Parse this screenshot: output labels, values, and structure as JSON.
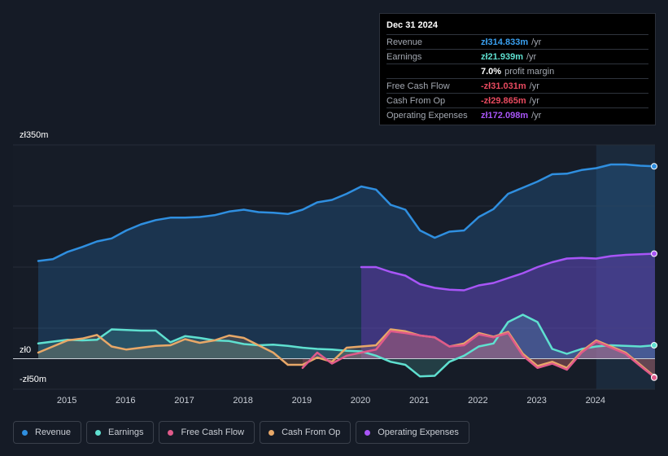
{
  "tooltip": {
    "date": "Dec 31 2024",
    "rows": {
      "revenue": {
        "label": "Revenue",
        "value": "zł314.833m",
        "unit": "/yr",
        "color": "#3aa0f0"
      },
      "earnings": {
        "label": "Earnings",
        "value": "zł21.939m",
        "unit": "/yr",
        "color": "#5fe0d0"
      },
      "margin": {
        "value": "7.0%",
        "text": "profit margin"
      },
      "fcf": {
        "label": "Free Cash Flow",
        "value": "-zł31.031m",
        "unit": "/yr",
        "color": "#e84a5f"
      },
      "cfo": {
        "label": "Cash From Op",
        "value": "-zł29.865m",
        "unit": "/yr",
        "color": "#e84a5f"
      },
      "opex": {
        "label": "Operating Expenses",
        "value": "zł172.098m",
        "unit": "/yr",
        "color": "#a855f7"
      }
    }
  },
  "axis": {
    "top": "zł350m",
    "zero": "zł0",
    "bottom": "-zł50m"
  },
  "legend": {
    "revenue": "Revenue",
    "earnings": "Earnings",
    "fcf": "Free Cash Flow",
    "cfo": "Cash From Op",
    "opex": "Operating Expenses"
  },
  "chart_data": {
    "type": "area",
    "title": "",
    "xlabel": "",
    "ylabel": "",
    "xlim": [
      2014.5,
      2025.0
    ],
    "ylim": [
      -50,
      350
    ],
    "x_ticks": [
      "2015",
      "2016",
      "2017",
      "2018",
      "2019",
      "2020",
      "2021",
      "2022",
      "2023",
      "2024"
    ],
    "y_labels": [
      "zł350m",
      "zł0",
      "-zł50m"
    ],
    "highlight_from": 2024.0,
    "series": [
      {
        "name": "Revenue",
        "color": "#2f8fe0",
        "points": [
          [
            2014.5,
            160
          ],
          [
            2014.75,
            163
          ],
          [
            2015.0,
            175
          ],
          [
            2015.25,
            183
          ],
          [
            2015.5,
            192
          ],
          [
            2015.75,
            197
          ],
          [
            2016.0,
            210
          ],
          [
            2016.25,
            220
          ],
          [
            2016.5,
            227
          ],
          [
            2016.75,
            231
          ],
          [
            2017.0,
            231
          ],
          [
            2017.25,
            232
          ],
          [
            2017.5,
            235
          ],
          [
            2017.75,
            241
          ],
          [
            2018.0,
            244
          ],
          [
            2018.25,
            240
          ],
          [
            2018.5,
            239
          ],
          [
            2018.75,
            237
          ],
          [
            2019.0,
            244
          ],
          [
            2019.25,
            256
          ],
          [
            2019.5,
            260
          ],
          [
            2019.75,
            270
          ],
          [
            2020.0,
            282
          ],
          [
            2020.25,
            277
          ],
          [
            2020.5,
            252
          ],
          [
            2020.75,
            244
          ],
          [
            2021.0,
            210
          ],
          [
            2021.25,
            198
          ],
          [
            2021.5,
            208
          ],
          [
            2021.75,
            210
          ],
          [
            2022.0,
            232
          ],
          [
            2022.25,
            245
          ],
          [
            2022.5,
            270
          ],
          [
            2022.75,
            280
          ],
          [
            2023.0,
            290
          ],
          [
            2023.25,
            302
          ],
          [
            2023.5,
            303
          ],
          [
            2023.75,
            309
          ],
          [
            2024.0,
            312
          ],
          [
            2024.25,
            318
          ],
          [
            2024.5,
            318
          ],
          [
            2024.75,
            316
          ],
          [
            2025.0,
            315
          ]
        ]
      },
      {
        "name": "Earnings",
        "color": "#5fe0d0",
        "points": [
          [
            2014.5,
            25
          ],
          [
            2014.75,
            28
          ],
          [
            2015.0,
            31
          ],
          [
            2015.25,
            30
          ],
          [
            2015.5,
            31
          ],
          [
            2015.75,
            48
          ],
          [
            2016.0,
            47
          ],
          [
            2016.25,
            46
          ],
          [
            2016.5,
            46
          ],
          [
            2016.75,
            27
          ],
          [
            2017.0,
            37
          ],
          [
            2017.25,
            34
          ],
          [
            2017.5,
            30
          ],
          [
            2017.75,
            29
          ],
          [
            2018.0,
            24
          ],
          [
            2018.25,
            22
          ],
          [
            2018.5,
            23
          ],
          [
            2018.75,
            21
          ],
          [
            2019.0,
            18
          ],
          [
            2019.25,
            16
          ],
          [
            2019.5,
            15
          ],
          [
            2019.75,
            13
          ],
          [
            2020.0,
            12
          ],
          [
            2020.25,
            5
          ],
          [
            2020.5,
            -5
          ],
          [
            2020.75,
            -10
          ],
          [
            2021.0,
            -29
          ],
          [
            2021.25,
            -28
          ],
          [
            2021.5,
            -5
          ],
          [
            2021.75,
            5
          ],
          [
            2022.0,
            20
          ],
          [
            2022.25,
            25
          ],
          [
            2022.5,
            60
          ],
          [
            2022.75,
            72
          ],
          [
            2023.0,
            60
          ],
          [
            2023.25,
            16
          ],
          [
            2023.5,
            8
          ],
          [
            2023.75,
            16
          ],
          [
            2024.0,
            20
          ],
          [
            2024.25,
            22
          ],
          [
            2024.5,
            21
          ],
          [
            2024.75,
            20
          ],
          [
            2025.0,
            22
          ]
        ]
      },
      {
        "name": "Free Cash Flow",
        "color": "#e05a8a",
        "points": [
          [
            2019.0,
            -15
          ],
          [
            2019.25,
            10
          ],
          [
            2019.5,
            -8
          ],
          [
            2019.75,
            5
          ],
          [
            2020.0,
            10
          ],
          [
            2020.25,
            15
          ],
          [
            2020.5,
            45
          ],
          [
            2020.75,
            42
          ],
          [
            2021.0,
            38
          ],
          [
            2021.25,
            35
          ],
          [
            2021.5,
            20
          ],
          [
            2021.75,
            22
          ],
          [
            2022.0,
            40
          ],
          [
            2022.25,
            35
          ],
          [
            2022.5,
            42
          ],
          [
            2022.75,
            5
          ],
          [
            2023.0,
            -15
          ],
          [
            2023.25,
            -8
          ],
          [
            2023.5,
            -18
          ],
          [
            2023.75,
            10
          ],
          [
            2024.0,
            28
          ],
          [
            2024.25,
            18
          ],
          [
            2024.5,
            8
          ],
          [
            2024.75,
            -12
          ],
          [
            2025.0,
            -31
          ]
        ]
      },
      {
        "name": "Cash From Op",
        "color": "#e8a868",
        "points": [
          [
            2014.5,
            10
          ],
          [
            2014.75,
            20
          ],
          [
            2015.0,
            30
          ],
          [
            2015.25,
            33
          ],
          [
            2015.5,
            39
          ],
          [
            2015.75,
            20
          ],
          [
            2016.0,
            15
          ],
          [
            2016.25,
            18
          ],
          [
            2016.5,
            21
          ],
          [
            2016.75,
            22
          ],
          [
            2017.0,
            32
          ],
          [
            2017.25,
            26
          ],
          [
            2017.5,
            30
          ],
          [
            2017.75,
            38
          ],
          [
            2018.0,
            34
          ],
          [
            2018.25,
            22
          ],
          [
            2018.5,
            10
          ],
          [
            2018.75,
            -10
          ],
          [
            2019.0,
            -10
          ],
          [
            2019.25,
            2
          ],
          [
            2019.5,
            -5
          ],
          [
            2019.75,
            18
          ],
          [
            2020.0,
            20
          ],
          [
            2020.25,
            22
          ],
          [
            2020.5,
            48
          ],
          [
            2020.75,
            45
          ],
          [
            2021.0,
            38
          ],
          [
            2021.25,
            35
          ],
          [
            2021.5,
            20
          ],
          [
            2021.75,
            25
          ],
          [
            2022.0,
            42
          ],
          [
            2022.25,
            36
          ],
          [
            2022.5,
            44
          ],
          [
            2022.75,
            8
          ],
          [
            2023.0,
            -12
          ],
          [
            2023.25,
            -5
          ],
          [
            2023.5,
            -15
          ],
          [
            2023.75,
            12
          ],
          [
            2024.0,
            30
          ],
          [
            2024.25,
            20
          ],
          [
            2024.5,
            10
          ],
          [
            2024.75,
            -10
          ],
          [
            2025.0,
            -30
          ]
        ]
      },
      {
        "name": "Operating Expenses",
        "color": "#a855f7",
        "points": [
          [
            2020.0,
            150
          ],
          [
            2020.25,
            150
          ],
          [
            2020.5,
            142
          ],
          [
            2020.75,
            136
          ],
          [
            2021.0,
            122
          ],
          [
            2021.25,
            116
          ],
          [
            2021.5,
            113
          ],
          [
            2021.75,
            112
          ],
          [
            2022.0,
            120
          ],
          [
            2022.25,
            124
          ],
          [
            2022.5,
            132
          ],
          [
            2022.75,
            140
          ],
          [
            2023.0,
            150
          ],
          [
            2023.25,
            158
          ],
          [
            2023.5,
            164
          ],
          [
            2023.75,
            165
          ],
          [
            2024.0,
            164
          ],
          [
            2024.25,
            168
          ],
          [
            2024.5,
            170
          ],
          [
            2024.75,
            171
          ],
          [
            2025.0,
            172
          ]
        ]
      }
    ]
  }
}
